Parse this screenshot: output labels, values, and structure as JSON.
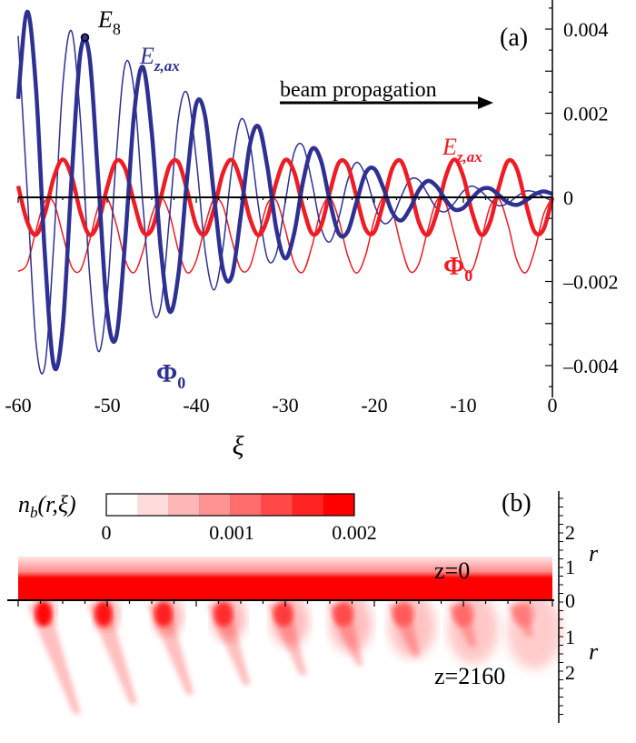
{
  "colors": {
    "blue": "#2e3192",
    "red": "#ee1c24",
    "axis": "#000000"
  },
  "chart_data": [
    {
      "panel": "(a)",
      "type": "line",
      "xlabel": "ξ",
      "xlim": [
        -60,
        0
      ],
      "ylim": [
        -0.0046,
        0.0047
      ],
      "x_ticks": [
        "-60",
        "-50",
        "-40",
        "-30",
        "-20",
        "-10",
        "0"
      ],
      "y_ticks": [
        "0.004",
        "0.002",
        "0",
        "–0.002",
        "–0.004"
      ],
      "y_tick_values": [
        0.004,
        0.002,
        0,
        -0.002,
        -0.004
      ],
      "x_tick_values": [
        -60,
        -50,
        -40,
        -30,
        -20,
        -10,
        0
      ],
      "annotations": {
        "e8": {
          "main": "E",
          "sub": "8"
        },
        "arrow": "beam propagation",
        "blue_ez": {
          "main": "E",
          "sub": "z,ax"
        },
        "blue_phi": {
          "main": "Φ",
          "sub": "0"
        },
        "red_ez": {
          "main": "E",
          "sub": "z,ax"
        },
        "red_phi": {
          "main": "Φ",
          "sub": "0"
        }
      },
      "e8_marker": {
        "x": -52.5,
        "y": 0.0038
      },
      "x": [
        -60,
        -59,
        -58,
        -57,
        -56,
        -55,
        -54,
        -53,
        -52,
        -51,
        -50,
        -49,
        -48,
        -47,
        -46,
        -45,
        -44,
        -43,
        -42,
        -41,
        -40,
        -39,
        -38,
        -37,
        -36,
        -35,
        -34,
        -33,
        -32,
        -31,
        -30,
        -29,
        -28,
        -27,
        -26,
        -25,
        -24,
        -23,
        -22,
        -21,
        -20,
        -19,
        -18,
        -17,
        -16,
        -15,
        -14,
        -13,
        -12,
        -11,
        -10,
        -9,
        -8,
        -7,
        -6,
        -5,
        -4,
        -3,
        -2,
        -1,
        0
      ],
      "series": [
        {
          "key": "blue_ez",
          "color": "#2e3192",
          "weight": "thick",
          "values": [
            0.00234,
            0.00441,
            0.0026,
            -0.00137,
            -0.004,
            -0.00309,
            0.00044,
            0.00344,
            0.00336,
            0.0004,
            -0.00271,
            -0.00333,
            -0.00108,
            0.00194,
            0.0031,
            0.00155,
            -0.00119,
            -0.00271,
            -0.00183,
            0.00051,
            0.00222,
            0.00192,
            3e-05,
            -0.00172,
            -0.00187,
            -0.00044,
            0.00122,
            0.00168,
            0.00071,
            -0.00076,
            -0.00145,
            -0.00085,
            0.00038,
            0.00115,
            0.00088,
            -9e-05,
            -0.00086,
            -0.00082,
            -0.00012,
            0.00057,
            0.00068,
            0.00023,
            -0.00035,
            -0.00055,
            -0.00027,
            0.00017,
            0.00039,
            0.00026,
            -6e-05,
            -0.00029,
            -0.00025,
            -1e-05,
            0.00019,
            0.00021,
            5e-05,
            -0.00012,
            -0.00018,
            -8e-05,
            7e-05,
            0.00014,
            8e-05
          ]
        },
        {
          "key": "blue_phi",
          "color": "#2e3192",
          "weight": "thin",
          "values": [
            0.00384,
            0.00021,
            -0.00345,
            -0.00401,
            -0.0011,
            0.00264,
            0.00395,
            0.00182,
            -0.00178,
            -0.00366,
            -0.00232,
            0.00091,
            0.00315,
            0.00257,
            -0.00015,
            -0.00254,
            -0.00261,
            -0.00047,
            0.00189,
            0.00247,
            0.00091,
            -0.00127,
            -0.0022,
            -0.0012,
            0.00071,
            0.00185,
            0.00133,
            -0.00024,
            -0.00146,
            -0.00133,
            -0.00011,
            0.00107,
            0.00122,
            0.00035,
            -0.00071,
            -0.00106,
            -0.00049,
            0.0004,
            0.00083,
            0.00052,
            -0.00017,
            -0.00061,
            -0.00049,
            1e-05,
            0.00042,
            0.00041,
            8e-05,
            -0.00026,
            -0.00034,
            -0.00013,
            0.00015,
            0.00027,
            0.00014,
            -7e-05,
            -0.0002,
            -0.00014,
            2e-05,
            0.00015,
            0.00013,
            1e-05,
            -9e-05
          ]
        },
        {
          "key": "red_ez",
          "color": "#ee1c24",
          "weight": "thick",
          "values": [
            0.00027,
            -0.00057,
            -0.00089,
            -0.00039,
            0.00047,
            0.0009,
            0.0005,
            -0.00036,
            -0.00089,
            -0.0006,
            0.00024,
            0.00086,
            0.00069,
            -0.00011,
            -0.00081,
            -0.00077,
            -2e-05,
            0.00075,
            0.00083,
            0.00014,
            -0.00067,
            -0.00087,
            -0.00027,
            0.00058,
            0.00089,
            0.00039,
            -0.00048,
            -0.0009,
            -0.0005,
            0.00036,
            0.00089,
            0.0006,
            -0.00024,
            -0.00086,
            -0.00069,
            0.00012,
            0.00082,
            0.00076,
            1e-05,
            -0.00075,
            -0.00082,
            -0.00014,
            0.00068,
            0.00086,
            0.00026,
            -0.00059,
            -0.00089,
            -0.00038,
            0.00048,
            0.0009,
            0.00049,
            -0.00037,
            -0.00089,
            -0.00059,
            0.00025,
            0.00086,
            0.00068,
            -0.00013,
            -0.00082,
            -0.00076,
            0
          ]
        },
        {
          "key": "red_phi",
          "color": "#ee1c24",
          "weight": "thin",
          "values": [
            -0.00176,
            -0.00159,
            -0.00079,
            -9e-05,
            -0.00013,
            -0.00088,
            -0.00165,
            -0.00173,
            -0.00105,
            -0.00023,
            -3e-05,
            -0.00063,
            -0.00148,
            -0.00179,
            -0.00129,
            -0.00043,
            0,
            -0.0004,
            -0.00126,
            -0.00179,
            -0.0015,
            -0.00066,
            -4e-05,
            -0.00021,
            -0.00102,
            -0.00171,
            -0.00166,
            -0.00091,
            -0.00015,
            -8e-05,
            -0.00076,
            -0.00157,
            -0.00177,
            -0.00116,
            -0.00032,
            -1e-05,
            -0.00052,
            -0.00138,
            -0.0018,
            -0.00139,
            -0.00053,
            -1e-05,
            -0.00031,
            -0.00115,
            -0.00176,
            -0.00158,
            -0.00078,
            -8e-05,
            -0.00014,
            -0.0009,
            -0.00166,
            -0.00172,
            -0.00103,
            -0.00022,
            -4e-05,
            -0.00064,
            -0.00149,
            -0.00179,
            -0.00127,
            -0.00041,
            0
          ]
        }
      ]
    },
    {
      "panel": "(b)",
      "type": "heatmap",
      "colorbar_label": {
        "main": "n",
        "sub": "b",
        "rest": "(r,ξ)"
      },
      "colorbar_ticks": [
        "0",
        "0.001",
        "0.002"
      ],
      "colorbar_range": [
        0,
        0.002
      ],
      "colorbar_levels": 8,
      "ylabel": "r",
      "r_ticks_top": [
        "2",
        "1",
        "0"
      ],
      "r_ticks_bottom": [
        "1",
        "2"
      ],
      "labels": {
        "top": "z=0",
        "bottom": "z=2160"
      },
      "xlim": [
        -60,
        0
      ],
      "bunch_count": 9
    }
  ]
}
